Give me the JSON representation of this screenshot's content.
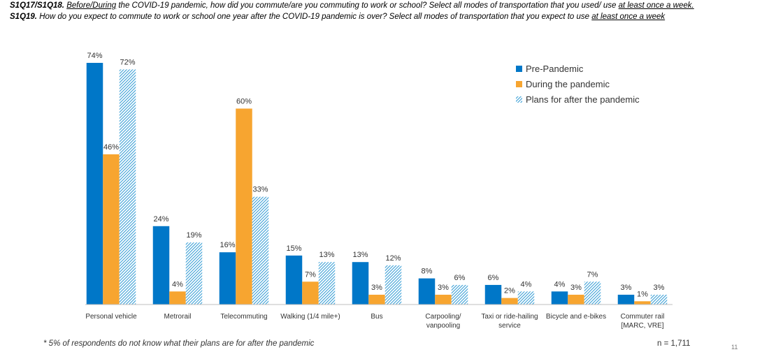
{
  "question1": {
    "code": "S1Q17/S1Q18.",
    "underlined": "Before/During",
    "text": " the COVID-19 pandemic, how did you commute/are you commuting to work or school? Select all modes of transportation that you used/ use ",
    "emphasis": "at least once a week."
  },
  "question2": {
    "code": "S1Q19.",
    "text": " How do you expect to commute to work or school one year after the COVID-19 pandemic is over? Select all modes of transportation that you expect to use ",
    "emphasis": "at least once a week"
  },
  "footnote": "* 5% of respondents do not know what their plans are for after the pandemic",
  "sample_size": "n = 1,711",
  "page_number": "11",
  "colors": {
    "pre": "#0077c8",
    "during": "#f7a530",
    "after": "#3a9fd6"
  },
  "chart_data": {
    "type": "bar",
    "categories": [
      [
        "Personal vehicle"
      ],
      [
        "Metrorail"
      ],
      [
        "Telecommuting"
      ],
      [
        "Walking (1/4 mile+)"
      ],
      [
        "Bus"
      ],
      [
        "Carpooling/",
        "vanpooling"
      ],
      [
        "Taxi or ride-hailing",
        "service"
      ],
      [
        "Bicycle and e-bikes"
      ],
      [
        "Commuter rail",
        "[MARC, VRE]"
      ]
    ],
    "series": [
      {
        "name": "Pre-Pandemic",
        "values": [
          74,
          24,
          16,
          15,
          13,
          8,
          6,
          4,
          3
        ],
        "style": "solid-blue"
      },
      {
        "name": "During the pandemic",
        "values": [
          46,
          4,
          60,
          7,
          3,
          3,
          2,
          3,
          1
        ],
        "style": "solid-orange"
      },
      {
        "name": "Plans for after the pandemic",
        "values": [
          72,
          19,
          33,
          13,
          12,
          6,
          4,
          7,
          3
        ],
        "style": "hatched-blue"
      }
    ],
    "value_suffix": "%",
    "ylim": [
      0,
      74
    ],
    "legend_position": "top-right",
    "grid": false
  }
}
